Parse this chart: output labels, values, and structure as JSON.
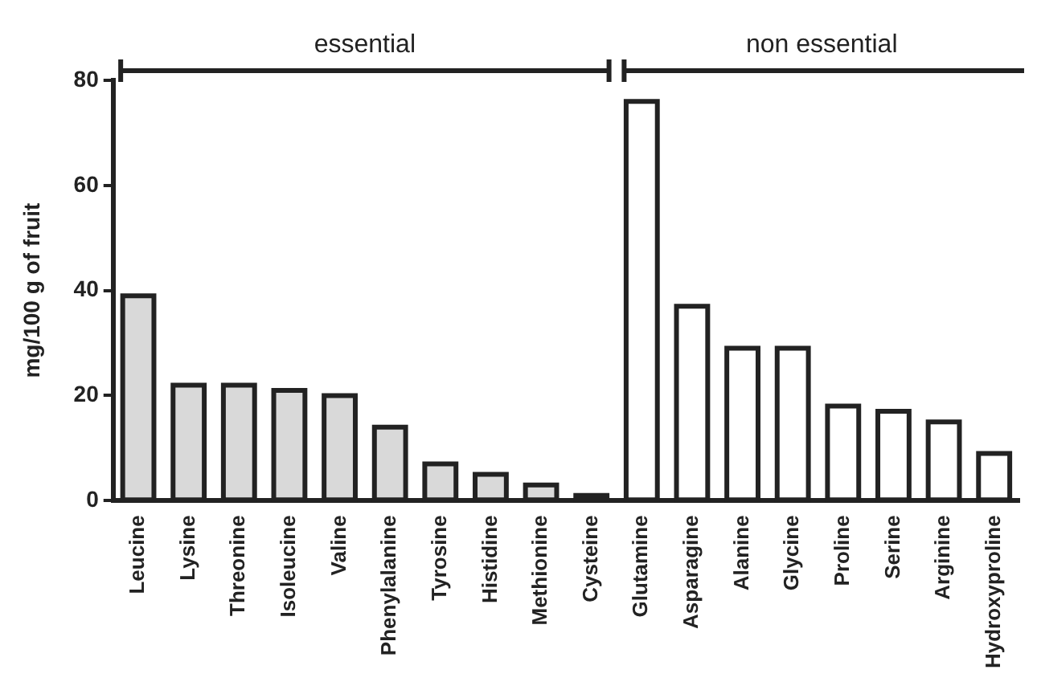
{
  "chart_data": {
    "type": "bar",
    "ylabel": "mg/100 g of fruit",
    "categories": [
      "Leucine",
      "Lysine",
      "Threonine",
      "Isoleucine",
      "Valine",
      "Phenylalanine",
      "Tyrosine",
      "Histidine",
      "Methionine",
      "Cysteine",
      "Glutamine",
      "Asparagine",
      "Alanine",
      "Glycine",
      "Proline",
      "Serine",
      "Arginine",
      "Hydroxyproline"
    ],
    "values": [
      39,
      22,
      22,
      21,
      20,
      14,
      7,
      5,
      3,
      1,
      76,
      37,
      29,
      29,
      18,
      17,
      15,
      9
    ],
    "colors": [
      "#d9d9d9",
      "#d9d9d9",
      "#d9d9d9",
      "#d9d9d9",
      "#d9d9d9",
      "#d9d9d9",
      "#d9d9d9",
      "#d9d9d9",
      "#d9d9d9",
      "#d9d9d9",
      "#ffffff",
      "#ffffff",
      "#ffffff",
      "#ffffff",
      "#ffffff",
      "#ffffff",
      "#ffffff",
      "#ffffff"
    ],
    "ylim": [
      0,
      80
    ],
    "yticks": [
      0,
      20,
      40,
      60,
      80
    ],
    "grid": false,
    "legend": false,
    "annotations": [
      "essential",
      "non essential"
    ]
  }
}
